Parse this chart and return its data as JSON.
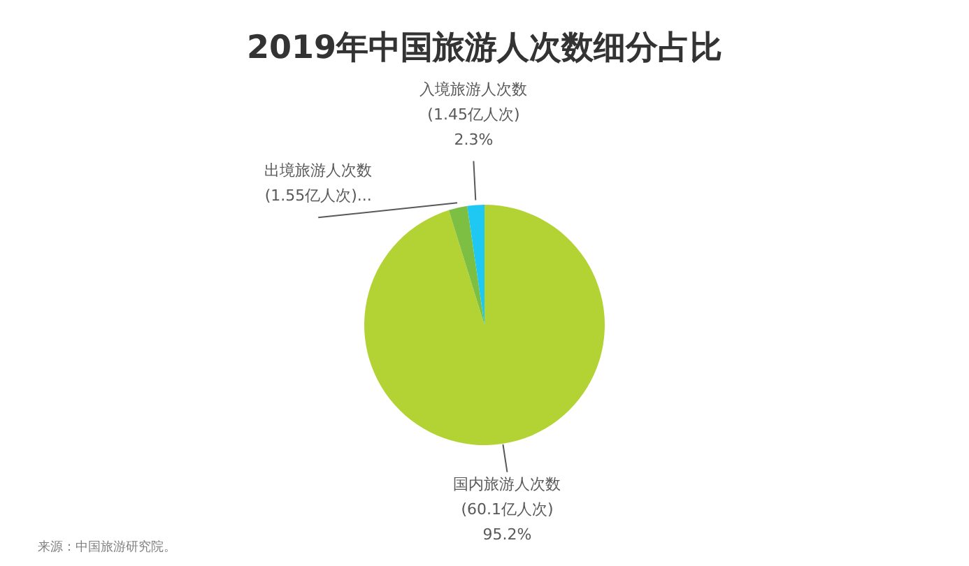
{
  "chart_data": {
    "type": "pie",
    "title": "2019年中国旅游人次数细分占比",
    "categories": [
      "国内旅游人次数",
      "出境旅游人次数",
      "入境旅游人次数"
    ],
    "values": [
      95.2,
      2.5,
      2.3
    ],
    "colors": [
      "#b3d335",
      "#7cbf42",
      "#1ec8f2"
    ],
    "value_labels": [
      "(60.1亿人次)\n95.2%",
      "(1.55亿人次)...",
      "(1.45亿人次)\n2.3%"
    ],
    "annotations": [
      "来源：中国旅游研究院。"
    ]
  }
}
